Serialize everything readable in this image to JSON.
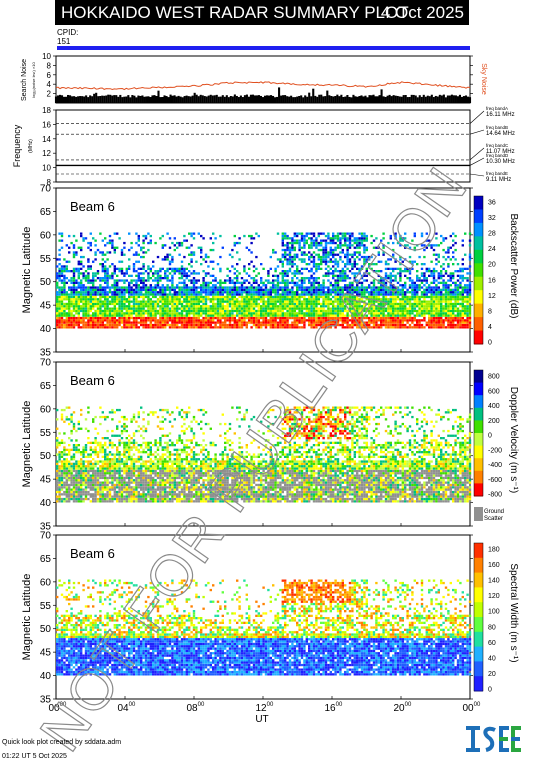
{
  "header": {
    "title": "HOKKAIDO WEST RADAR SUMMARY PLOT",
    "date": "4 Oct 2025"
  },
  "cpid": {
    "label": "CPID:",
    "value": "151"
  },
  "noise_panel": {
    "ylabel": "Search Noise",
    "ysublabel": "log₁₀(noise lev.) ×10",
    "right_label": "Sky Noise",
    "yticks": [
      "10",
      "8",
      "6",
      "4",
      "2"
    ]
  },
  "freq_panel": {
    "ylabel": "Frequency",
    "yunit": "(MHz)",
    "yticks": [
      "18",
      "16",
      "14",
      "12",
      "10",
      "8"
    ],
    "bands": [
      {
        "name": "freq bandA",
        "freq": "16.11 MHz"
      },
      {
        "name": "freq bandB",
        "freq": "14.64 MHz"
      },
      {
        "name": "freq bandC",
        "freq": "11.07 MHz"
      },
      {
        "name": "freq bandD",
        "freq": "10.30 MHz"
      },
      {
        "name": "freq bandE",
        "freq": "9.11 MHz"
      }
    ]
  },
  "colors": {
    "power_scale": [
      "#ff0000",
      "#ff6000",
      "#ffb000",
      "#ffff00",
      "#a0f000",
      "#40e000",
      "#00d040",
      "#00c0a0",
      "#0090ff",
      "#0040ff",
      "#0000c0"
    ],
    "velocity_scale": [
      "#ff0000",
      "#ff8000",
      "#ffc000",
      "#ffff00",
      "#c0ff40",
      "#40e000",
      "#00c080",
      "#0080ff",
      "#0000ff",
      "#000090"
    ],
    "width_scale": [
      "#2020ff",
      "#2060ff",
      "#20b0ff",
      "#20e0a0",
      "#60ff40",
      "#c0ff00",
      "#ffff00",
      "#ffc000",
      "#ff8000",
      "#ff3000"
    ],
    "ground_scatter": "#909090",
    "noise_line": "#e05020"
  },
  "panels": [
    {
      "beam": "Beam  6",
      "ylabel": "Magnetic Latitude",
      "yticks": [
        "70",
        "65",
        "60",
        "55",
        "50",
        "45",
        "40",
        "35"
      ],
      "colorbar_label": "Backscatter Power (dB)",
      "colorbar_ticks": [
        "36",
        "32",
        "28",
        "24",
        "20",
        "16",
        "12",
        "8",
        "4",
        "0"
      ]
    },
    {
      "beam": "Beam  6",
      "ylabel": "Magnetic Latitude",
      "yticks": [
        "70",
        "65",
        "60",
        "55",
        "50",
        "45",
        "40",
        "35"
      ],
      "colorbar_label": "Doppler Velocity (m s⁻¹)",
      "colorbar_ticks": [
        "800",
        "600",
        "400",
        "200",
        "0",
        "-200",
        "-400",
        "-600",
        "-800"
      ],
      "ground_label_1": "Ground",
      "ground_label_2": "Scatter"
    },
    {
      "beam": "Beam  6",
      "ylabel": "Magnetic Latitude",
      "yticks": [
        "70",
        "65",
        "60",
        "55",
        "50",
        "45",
        "40",
        "35"
      ],
      "colorbar_label": "Spectral Width (m s⁻¹)",
      "colorbar_ticks": [
        "180",
        "160",
        "140",
        "120",
        "100",
        "80",
        "60",
        "40",
        "20",
        "0"
      ]
    }
  ],
  "xaxis": {
    "label": "UT",
    "ticks": [
      {
        "h": "00",
        "m": "00"
      },
      {
        "h": "04",
        "m": "00"
      },
      {
        "h": "08",
        "m": "00"
      },
      {
        "h": "12",
        "m": "00"
      },
      {
        "h": "16",
        "m": "00"
      },
      {
        "h": "20",
        "m": "00"
      },
      {
        "h": "00",
        "m": "00"
      }
    ]
  },
  "footer": {
    "line1": "Quick look plot created by sddata.adm",
    "line2": "01:22 UT  5 Oct 2025",
    "logo": "ISEE"
  },
  "watermark": "NOT FOR PUBLICATION",
  "chart_data": [
    {
      "type": "line",
      "name": "Search Noise",
      "x_range_ut_hours": [
        0,
        24
      ],
      "ylim": [
        0,
        10
      ],
      "x": [
        0,
        2,
        4,
        6,
        8,
        10,
        12,
        14,
        16,
        18,
        20,
        22,
        24
      ],
      "y": [
        3.2,
        3.1,
        3.0,
        3.3,
        3.6,
        4.3,
        4.4,
        4.0,
        3.8,
        3.5,
        4.4,
        3.8,
        3.2
      ]
    },
    {
      "type": "scatter",
      "name": "Frequency",
      "ylim": [
        8,
        18
      ],
      "bands_mhz": [
        16.11,
        14.64,
        11.07,
        10.3,
        9.11
      ],
      "operating_mhz": 10.3
    },
    {
      "type": "heatmap",
      "name": "Backscatter Power (dB)",
      "x_range_ut_hours": [
        0,
        24
      ],
      "ylim": [
        35,
        70
      ],
      "clim": [
        0,
        40
      ]
    },
    {
      "type": "heatmap",
      "name": "Doppler Velocity (m s-1)",
      "x_range_ut_hours": [
        0,
        24
      ],
      "ylim": [
        35,
        70
      ],
      "clim": [
        -800,
        900
      ]
    },
    {
      "type": "heatmap",
      "name": "Spectral Width (m s-1)",
      "x_range_ut_hours": [
        0,
        24
      ],
      "ylim": [
        35,
        70
      ],
      "clim": [
        0,
        200
      ]
    }
  ]
}
